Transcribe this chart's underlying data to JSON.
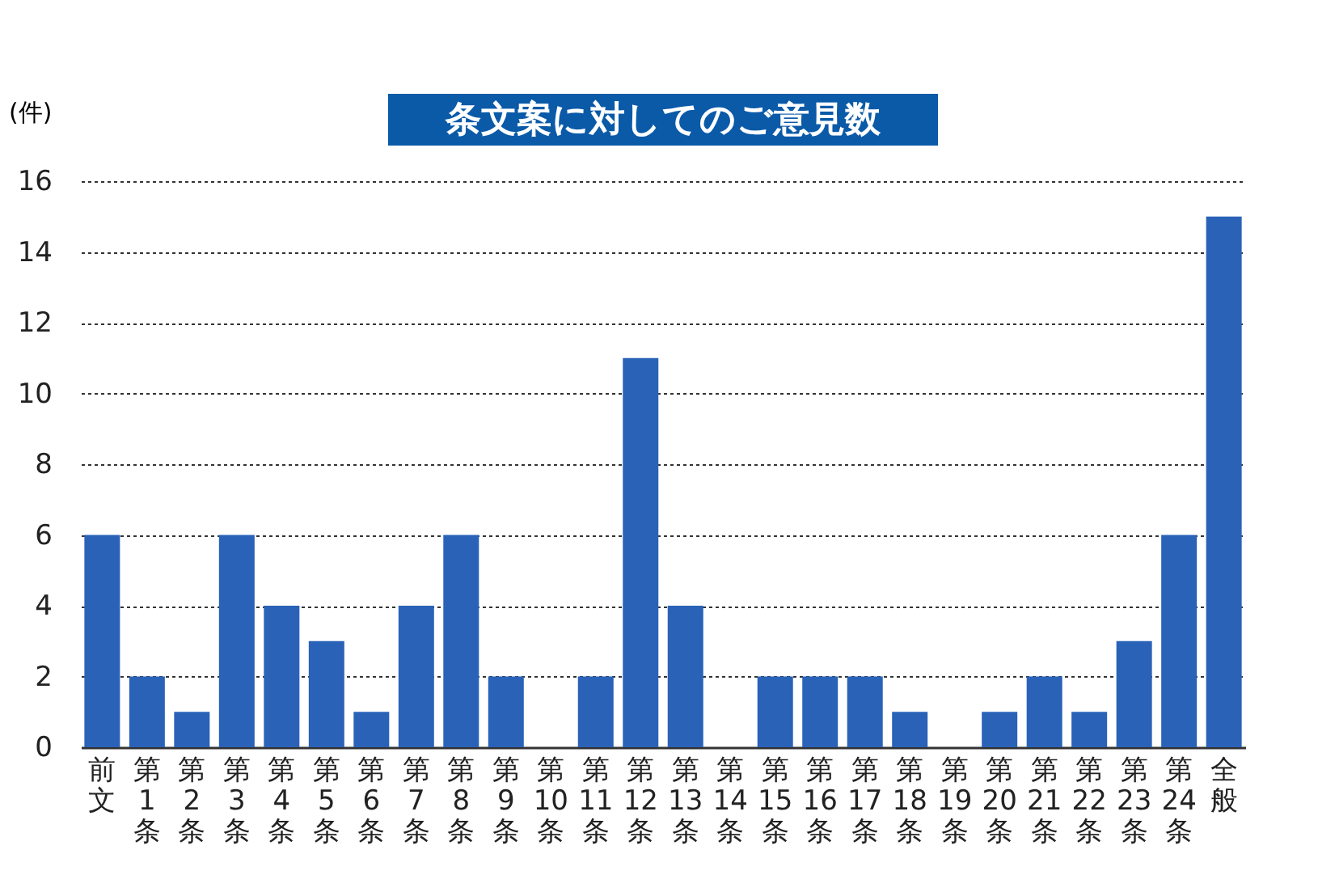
{
  "chart_data": {
    "type": "bar",
    "title": "条文案に対してのご意見数",
    "ylabel": "(件)",
    "categories": [
      "前文",
      "第1条",
      "第2条",
      "第3条",
      "第4条",
      "第5条",
      "第6条",
      "第7条",
      "第8条",
      "第9条",
      "第10条",
      "第11条",
      "第12条",
      "第13条",
      "第14条",
      "第15条",
      "第16条",
      "第17条",
      "第18条",
      "第19条",
      "第20条",
      "第21条",
      "第22条",
      "第23条",
      "第24条",
      "全般"
    ],
    "values": [
      6,
      2,
      1,
      6,
      4,
      3,
      1,
      4,
      6,
      2,
      0,
      2,
      11,
      4,
      0,
      2,
      2,
      2,
      1,
      0,
      1,
      2,
      1,
      3,
      6,
      15
    ],
    "color": "#2a62b8",
    "ylim": [
      0,
      16
    ],
    "yticks": [
      0,
      2,
      4,
      6,
      8,
      10,
      12,
      14,
      16
    ],
    "grid": "y"
  }
}
